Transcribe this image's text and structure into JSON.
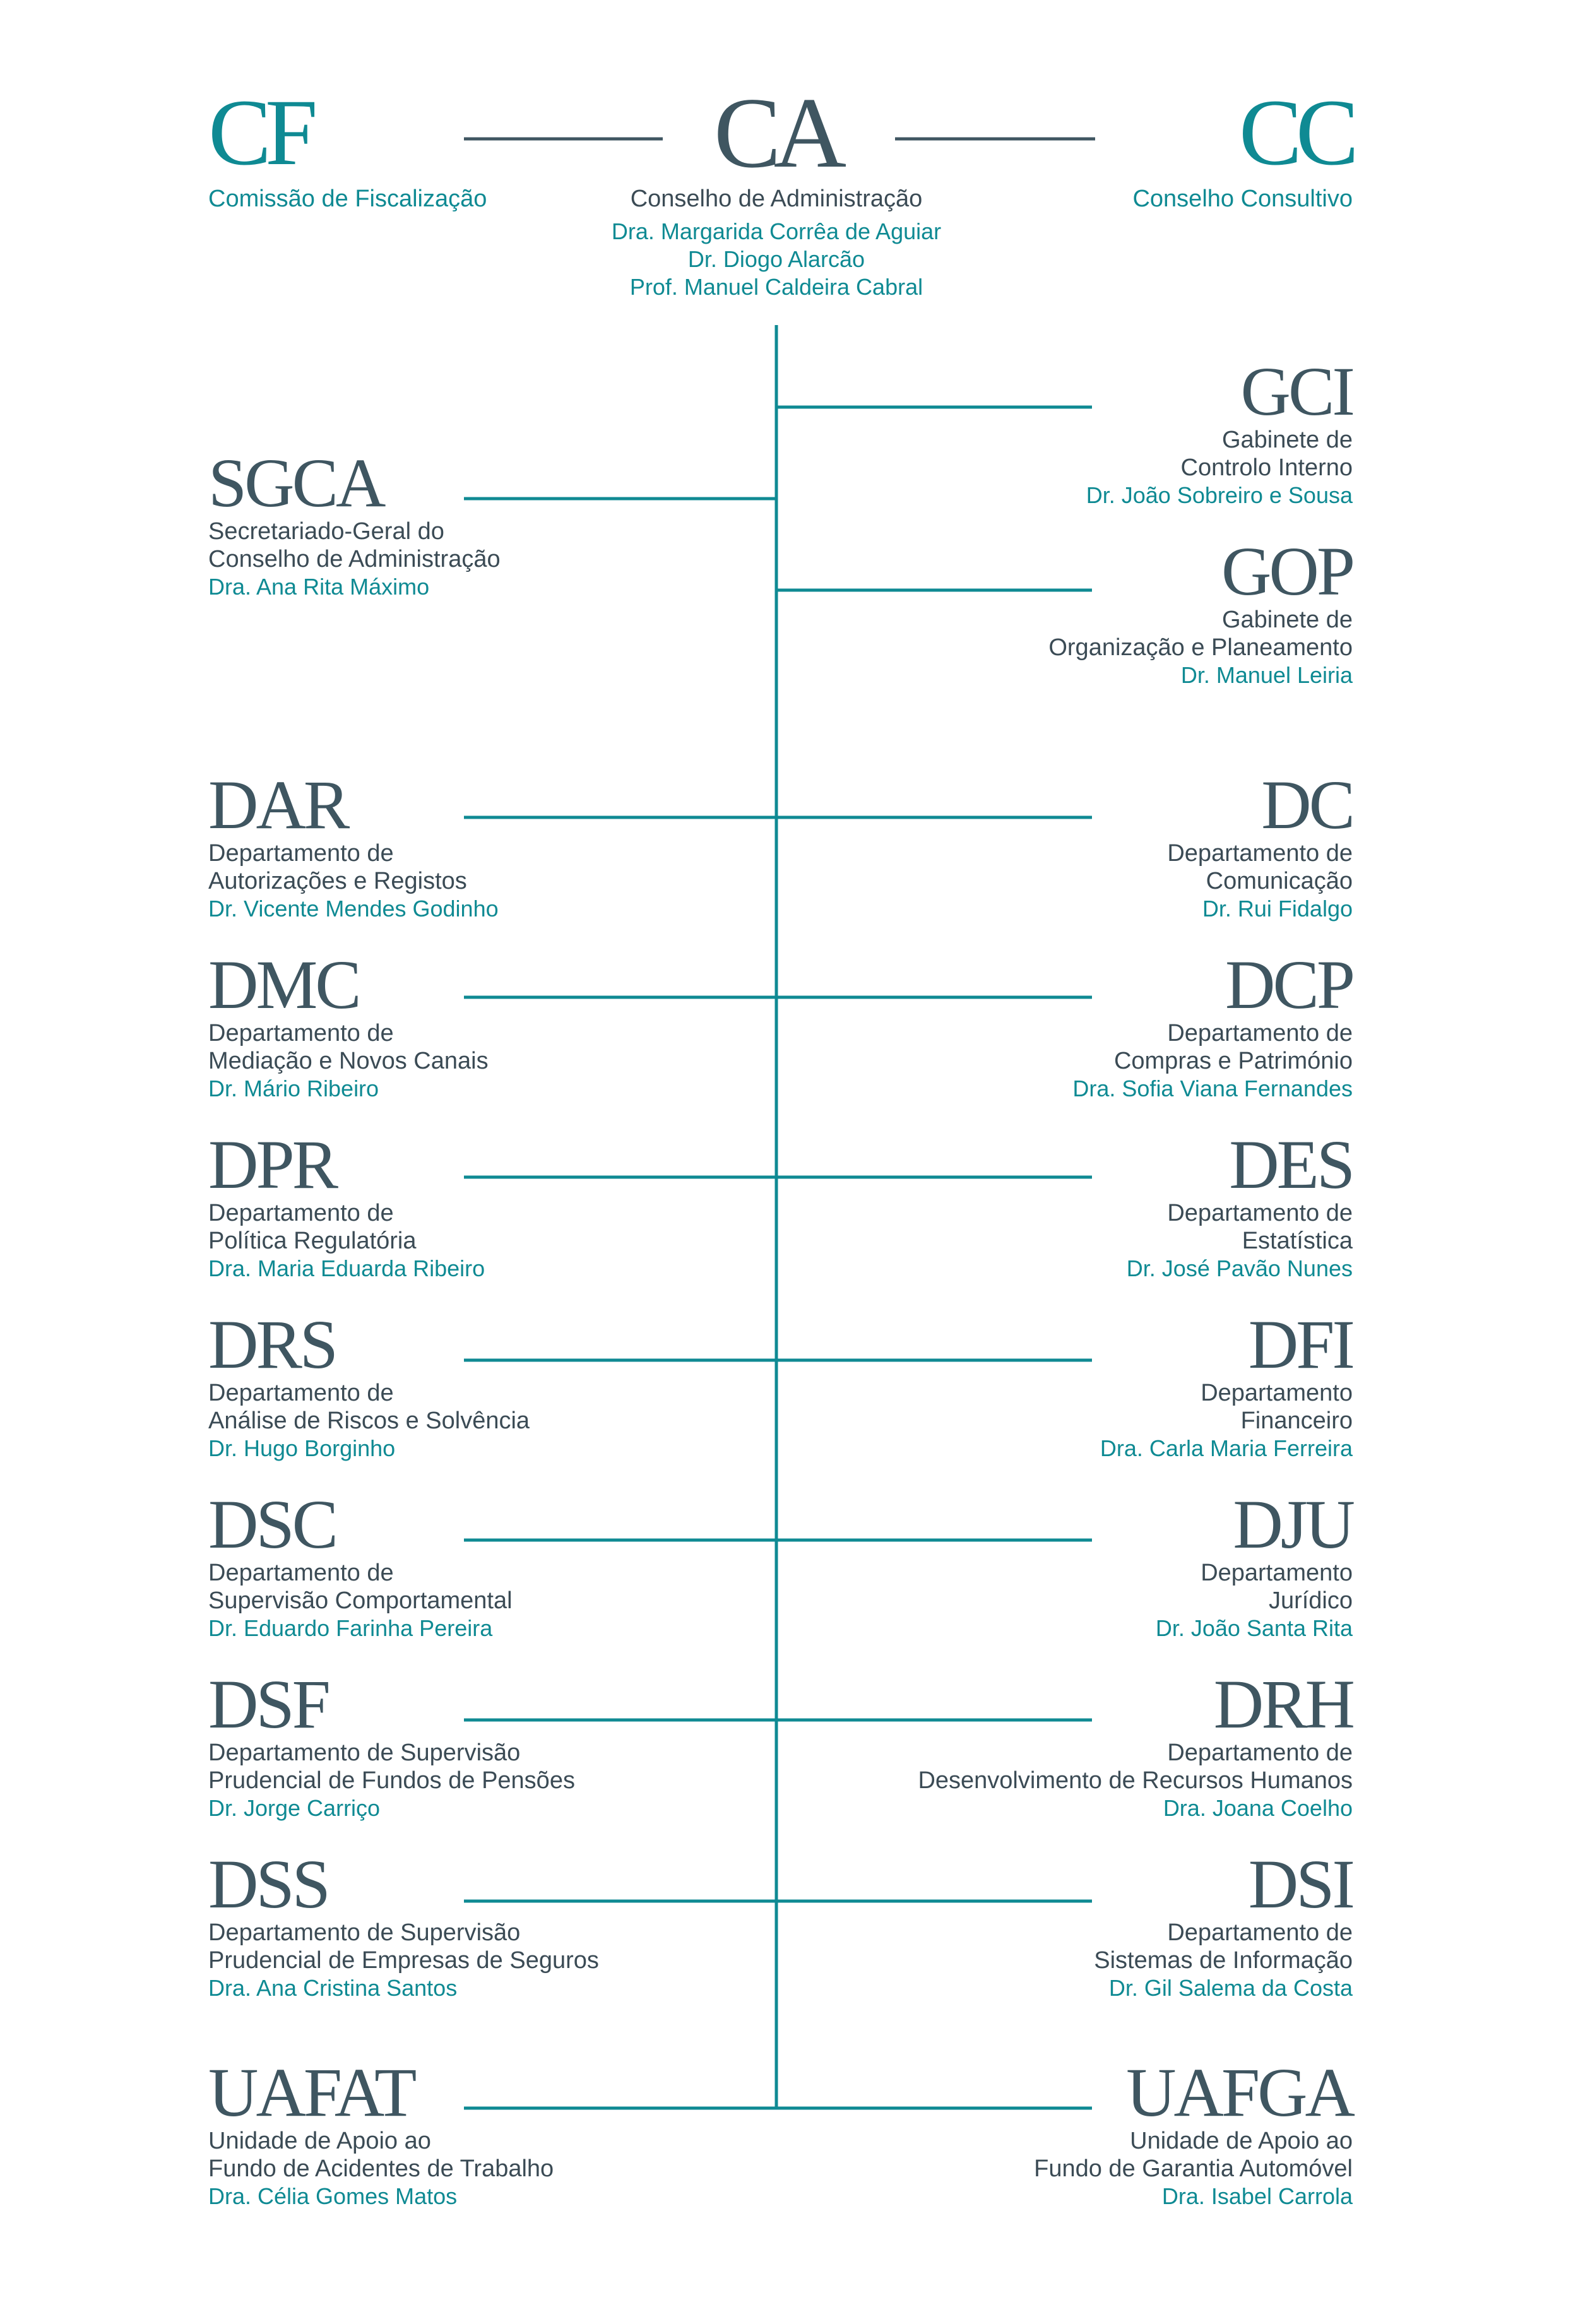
{
  "colors": {
    "teal": "#0f8a93",
    "slate": "#3f5661",
    "text": "#3b4b55"
  },
  "top": {
    "cf": {
      "abbr": "CF",
      "name": "Comissão de Fiscalização"
    },
    "ca": {
      "abbr": "CA",
      "name": "Conselho de Administração",
      "members": [
        "Dra. Margarida Corrêa de Aguiar",
        "Dr. Diogo Alarcão",
        "Prof. Manuel Caldeira Cabral"
      ]
    },
    "cc": {
      "abbr": "CC",
      "name": "Conselho Consultivo"
    }
  },
  "units": [
    {
      "id": "sgca",
      "side": "left",
      "abbr": "SGCA",
      "lines": [
        "Secretariado-Geral do",
        "Conselho de Administração"
      ],
      "person": "Dra. Ana Rita Máximo"
    },
    {
      "id": "gci",
      "side": "right",
      "abbr": "GCI",
      "lines": [
        "Gabinete de",
        "Controlo Interno"
      ],
      "person": "Dr. João Sobreiro e Sousa"
    },
    {
      "id": "gop",
      "side": "right",
      "abbr": "GOP",
      "lines": [
        "Gabinete de",
        "Organização e Planeamento"
      ],
      "person": "Dr. Manuel Leiria"
    },
    {
      "id": "dar",
      "side": "left",
      "abbr": "DAR",
      "lines": [
        "Departamento de",
        "Autorizações e Registos"
      ],
      "person": "Dr. Vicente Mendes Godinho"
    },
    {
      "id": "dc",
      "side": "right",
      "abbr": "DC",
      "lines": [
        "Departamento de",
        "Comunicação"
      ],
      "person": "Dr. Rui Fidalgo"
    },
    {
      "id": "dmc",
      "side": "left",
      "abbr": "DMC",
      "lines": [
        "Departamento de",
        "Mediação e Novos Canais"
      ],
      "person": "Dr. Mário Ribeiro"
    },
    {
      "id": "dcp",
      "side": "right",
      "abbr": "DCP",
      "lines": [
        "Departamento de",
        "Compras e Património"
      ],
      "person": "Dra. Sofia Viana Fernandes"
    },
    {
      "id": "dpr",
      "side": "left",
      "abbr": "DPR",
      "lines": [
        "Departamento de",
        "Política Regulatória"
      ],
      "person": "Dra. Maria Eduarda Ribeiro"
    },
    {
      "id": "des",
      "side": "right",
      "abbr": "DES",
      "lines": [
        "Departamento de",
        "Estatística"
      ],
      "person": "Dr. José Pavão Nunes"
    },
    {
      "id": "drs",
      "side": "left",
      "abbr": "DRS",
      "lines": [
        "Departamento de",
        "Análise de Riscos e Solvência"
      ],
      "person": "Dr. Hugo Borginho"
    },
    {
      "id": "dfi",
      "side": "right",
      "abbr": "DFI",
      "lines": [
        "Departamento",
        "Financeiro"
      ],
      "person": "Dra. Carla Maria Ferreira"
    },
    {
      "id": "dsc",
      "side": "left",
      "abbr": "DSC",
      "lines": [
        "Departamento de",
        "Supervisão Comportamental"
      ],
      "person": "Dr. Eduardo Farinha Pereira"
    },
    {
      "id": "dju",
      "side": "right",
      "abbr": "DJU",
      "lines": [
        "Departamento",
        "Jurídico"
      ],
      "person": "Dr. João Santa Rita"
    },
    {
      "id": "dsf",
      "side": "left",
      "abbr": "DSF",
      "lines": [
        "Departamento de Supervisão",
        "Prudencial de Fundos de Pensões"
      ],
      "person": "Dr. Jorge Carriço"
    },
    {
      "id": "drh",
      "side": "right",
      "abbr": "DRH",
      "lines": [
        "Departamento de",
        "Desenvolvimento de Recursos Humanos"
      ],
      "person": "Dra. Joana Coelho"
    },
    {
      "id": "dss",
      "side": "left",
      "abbr": "DSS",
      "lines": [
        "Departamento de Supervisão",
        "Prudencial de Empresas de Seguros"
      ],
      "person": "Dra. Ana Cristina Santos"
    },
    {
      "id": "dsi",
      "side": "right",
      "abbr": "DSI",
      "lines": [
        "Departamento de",
        "Sistemas de Informação"
      ],
      "person": "Dr. Gil Salema da Costa"
    },
    {
      "id": "uafat",
      "side": "left",
      "abbr": "UAFAT",
      "lines": [
        "Unidade de Apoio ao",
        "Fundo de Acidentes de Trabalho"
      ],
      "person": "Dra. Célia Gomes Matos"
    },
    {
      "id": "uafga",
      "side": "right",
      "abbr": "UAFGA",
      "lines": [
        "Unidade de Apoio ao",
        "Fundo de Garantia Automóvel"
      ],
      "person": "Dra. Isabel Carrola"
    }
  ]
}
